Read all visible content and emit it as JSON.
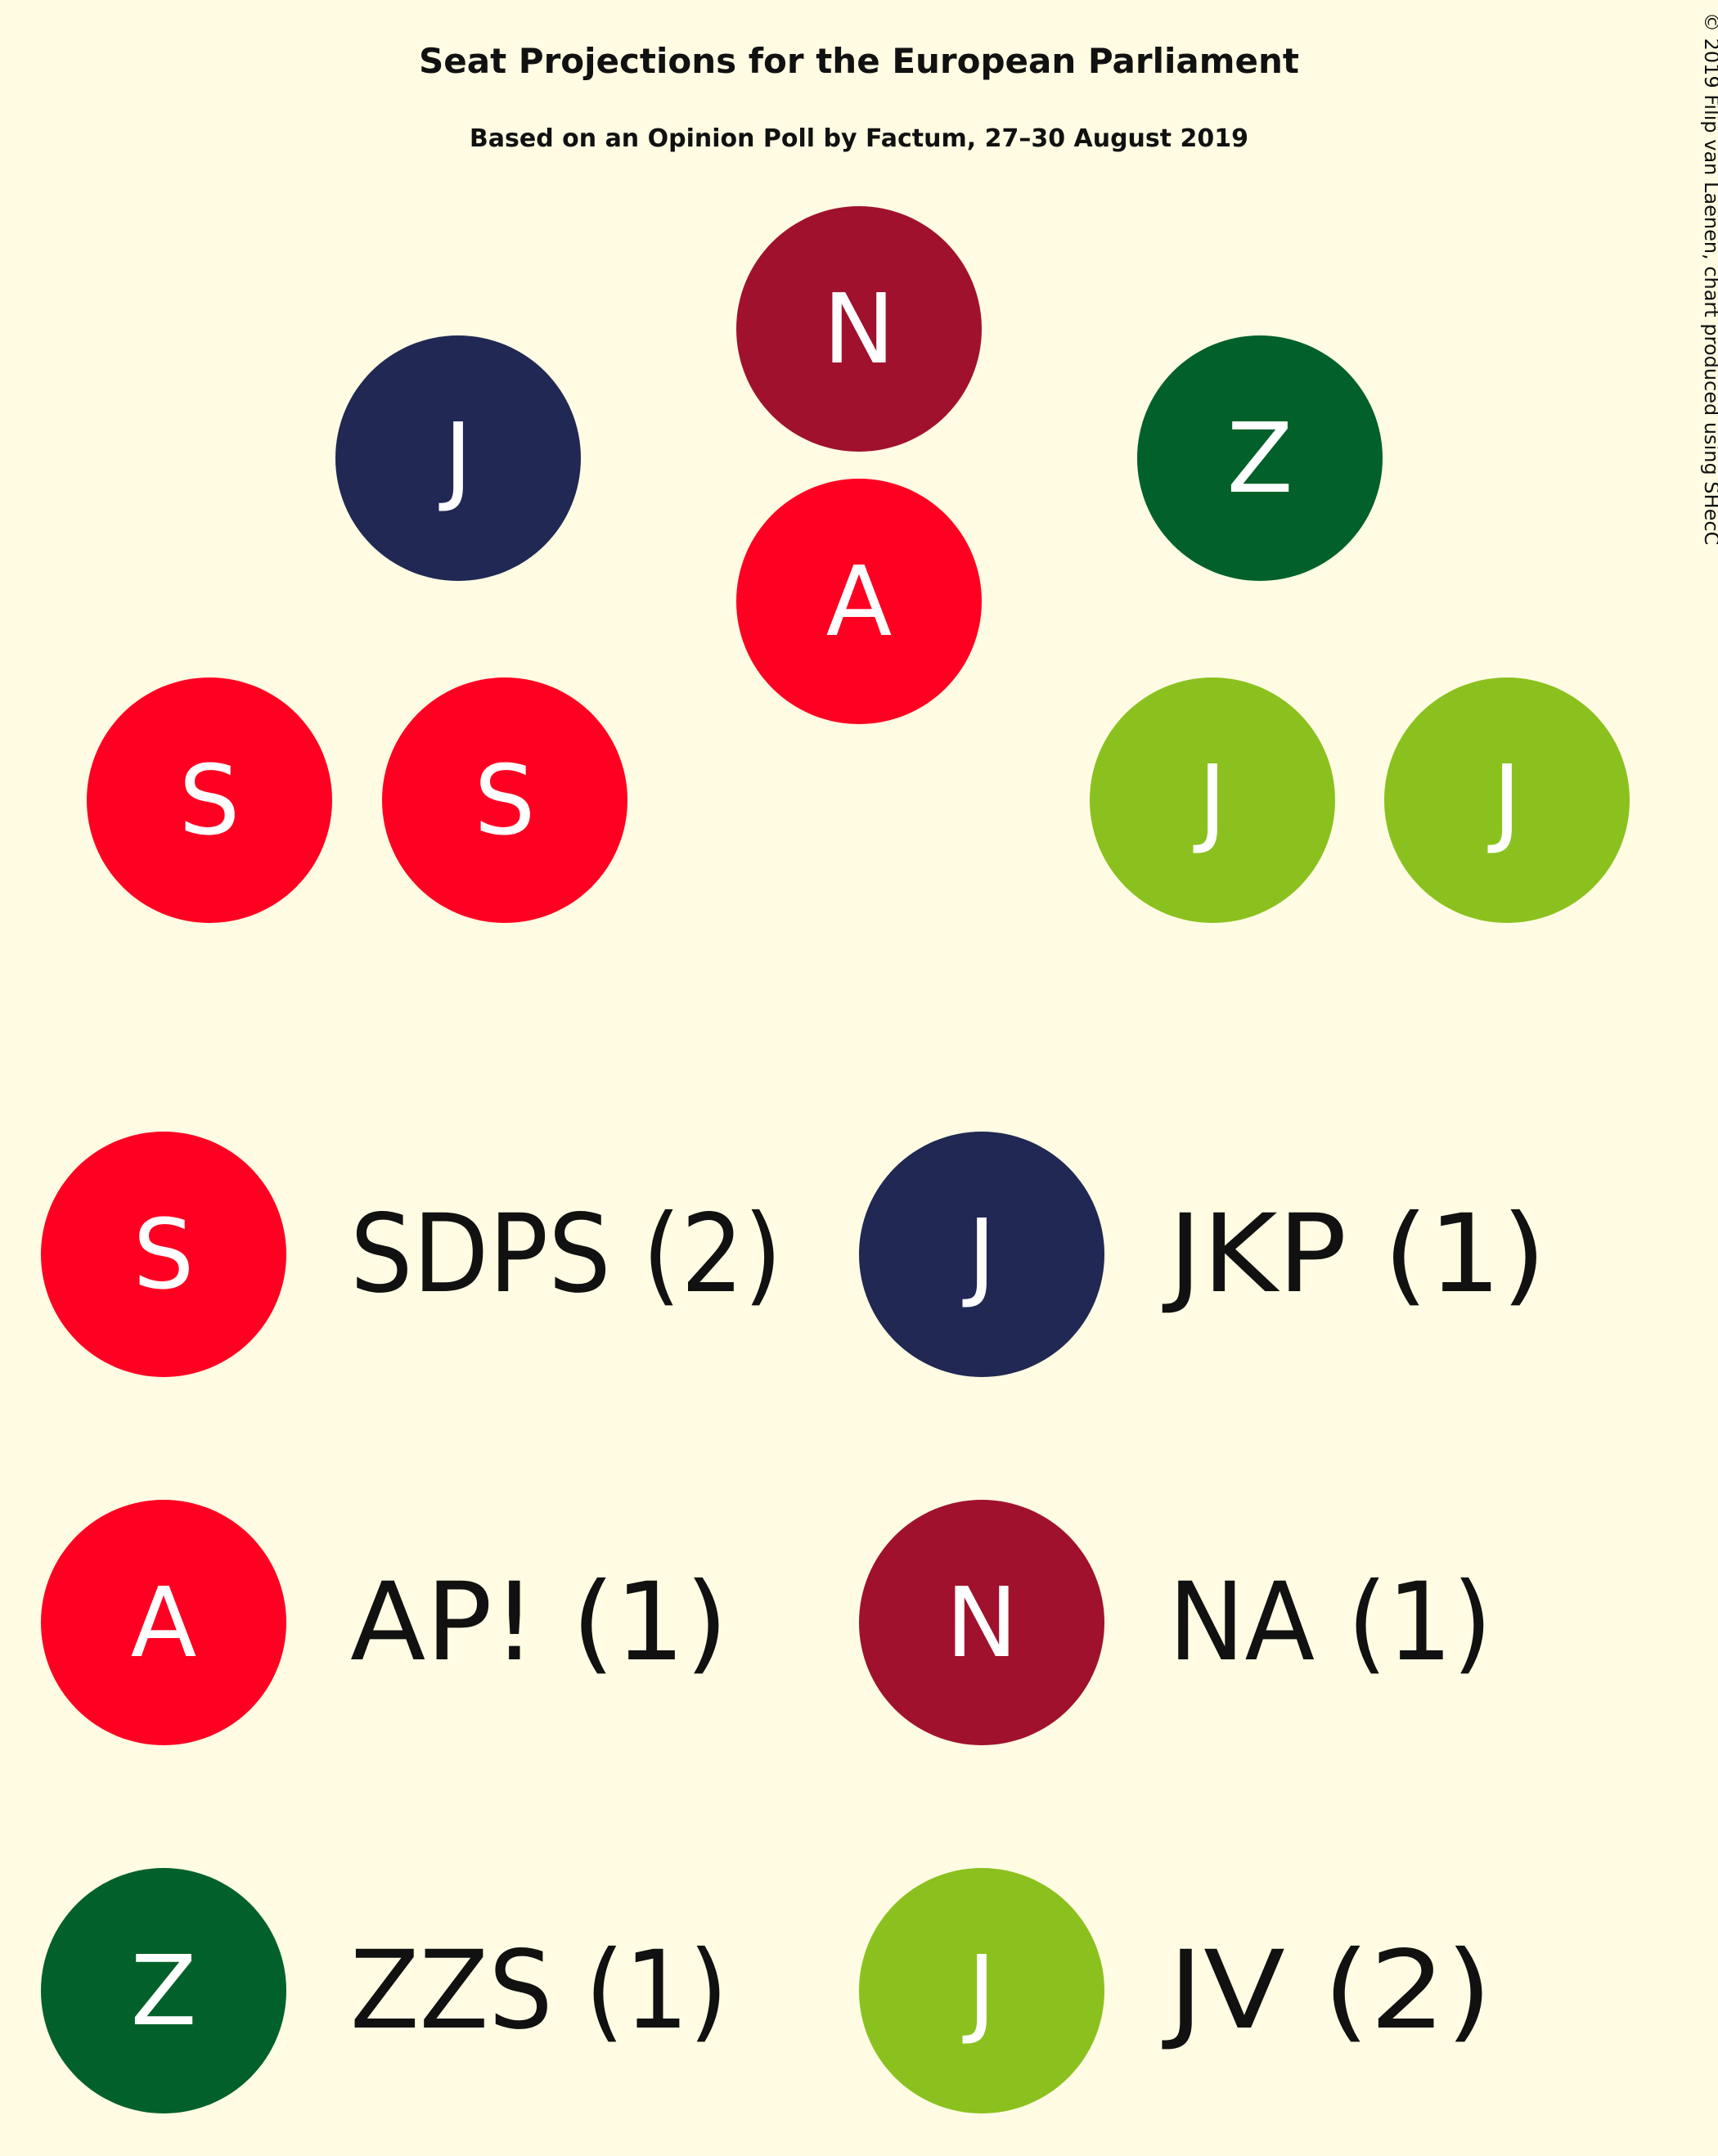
{
  "title": "Seat Projections for the European Parliament",
  "subtitle": "Based on an Opinion Poll by Factum, 27–30 August 2019",
  "credit": "© 2019 Filip van Laenen, chart produced using SHecC",
  "chart_data": {
    "type": "seat-parliament",
    "title": "Seat Projections for the European Parliament",
    "subtitle": "Based on an Opinion Poll by Factum, 27–30 August 2019",
    "total_seats": 8,
    "seat_order": [
      "SDPS",
      "SDPS",
      "JKP",
      "AP!",
      "NA",
      "ZZS",
      "JV",
      "JV"
    ],
    "parties": [
      {
        "name": "SDPS",
        "letter": "S",
        "seats": 2,
        "label": "SDPS (2)",
        "color": "#ff0022"
      },
      {
        "name": "JKP",
        "letter": "J",
        "seats": 1,
        "label": "JKP (1)",
        "color": "#202853"
      },
      {
        "name": "AP!",
        "letter": "A",
        "seats": 1,
        "label": "AP! (1)",
        "color": "#ff0022"
      },
      {
        "name": "NA",
        "letter": "N",
        "seats": 1,
        "label": "NA (1)",
        "color": "#a0112e"
      },
      {
        "name": "ZZS",
        "letter": "Z",
        "seats": 1,
        "label": "ZZS (1)",
        "color": "#02612a"
      },
      {
        "name": "JV",
        "letter": "J",
        "seats": 2,
        "label": "JV (2)",
        "color": "#8bc11e"
      }
    ]
  }
}
